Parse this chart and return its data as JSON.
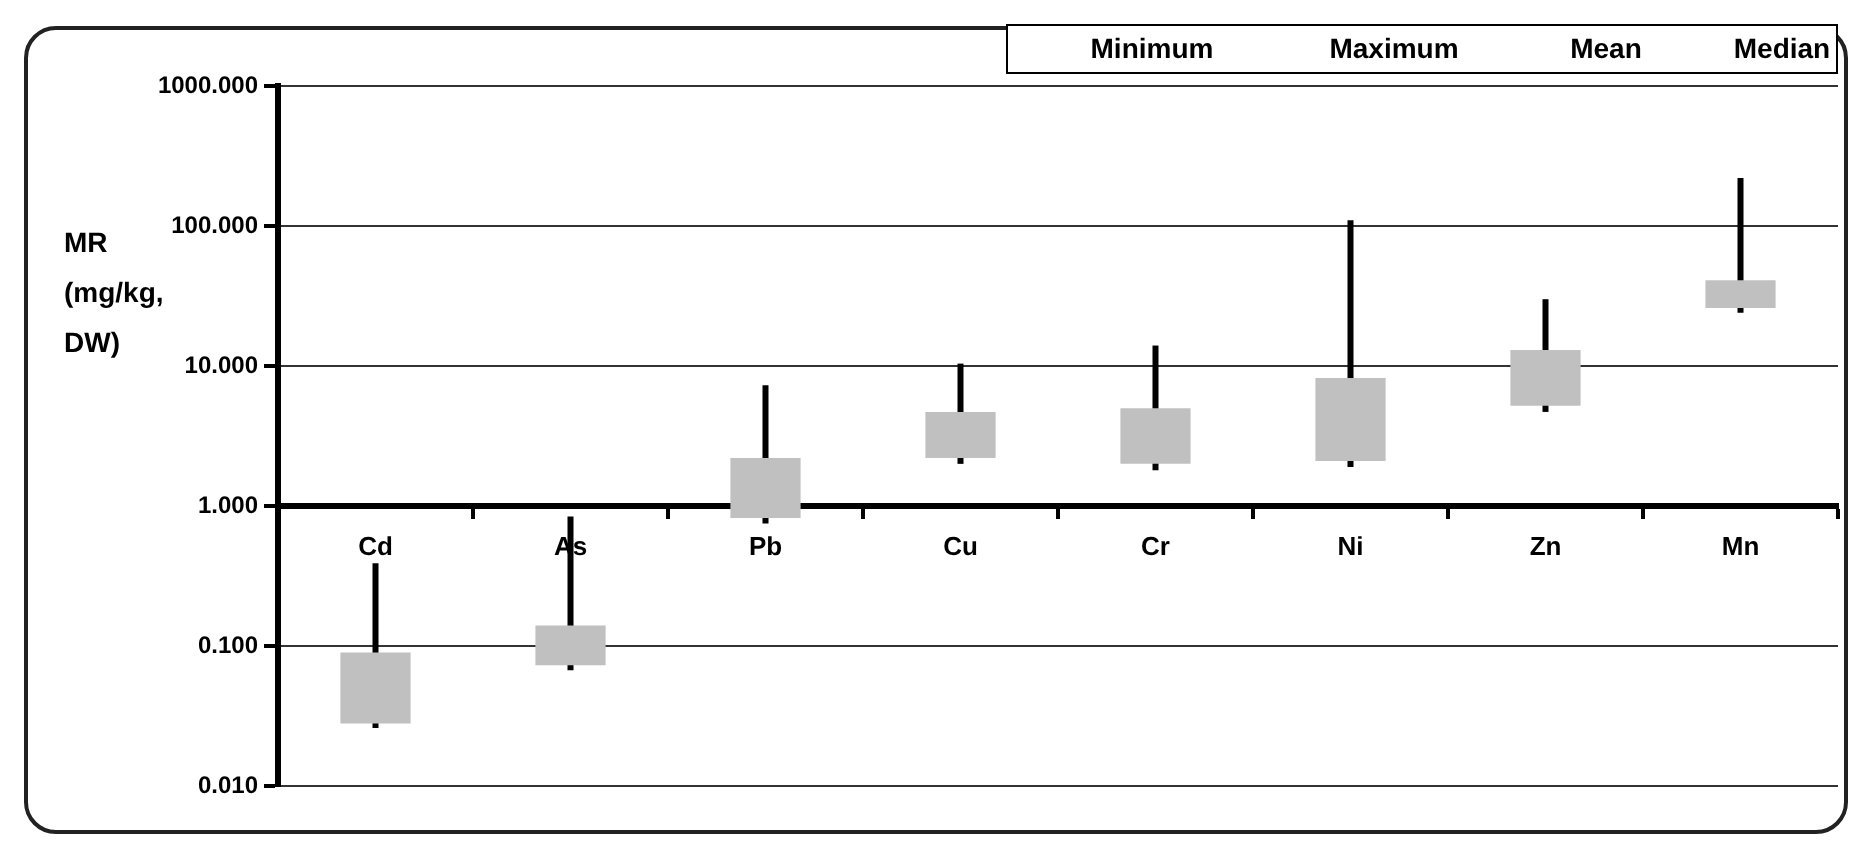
{
  "chart_data": {
    "type": "candlestick",
    "ylabel": "MR (mg/kg, DW)",
    "annotations": [
      "Minimum",
      "Maximum",
      "Mean",
      "Median"
    ],
    "categories": [
      "Cd",
      "As",
      "Pb",
      "Cu",
      "Cr",
      "Ni",
      "Zn",
      "Mn"
    ],
    "ohlc": [
      [
        0.028,
        0.39,
        0.026,
        0.09
      ],
      [
        0.073,
        0.84,
        0.067,
        0.14
      ],
      [
        0.82,
        7.3,
        0.75,
        2.2
      ],
      [
        2.2,
        10.4,
        2.0,
        4.7
      ],
      [
        2.0,
        14,
        1.8,
        5.0
      ],
      [
        2.1,
        110,
        1.9,
        8.2
      ],
      [
        5.2,
        30,
        4.7,
        13
      ],
      [
        26,
        220,
        24,
        41
      ]
    ],
    "color": "#c0c0c0",
    "log": true,
    "ylim": [
      0.01,
      1000
    ],
    "yticks": [
      {
        "value": 0.01,
        "label": "0.010"
      },
      {
        "value": 0.1,
        "label": "0.100"
      },
      {
        "value": 1,
        "label": "1.000"
      },
      {
        "value": 10,
        "label": "10.000"
      },
      {
        "value": 100,
        "label": "100.000"
      },
      {
        "value": 1000,
        "label": "1000.000"
      }
    ],
    "grid": "y"
  }
}
